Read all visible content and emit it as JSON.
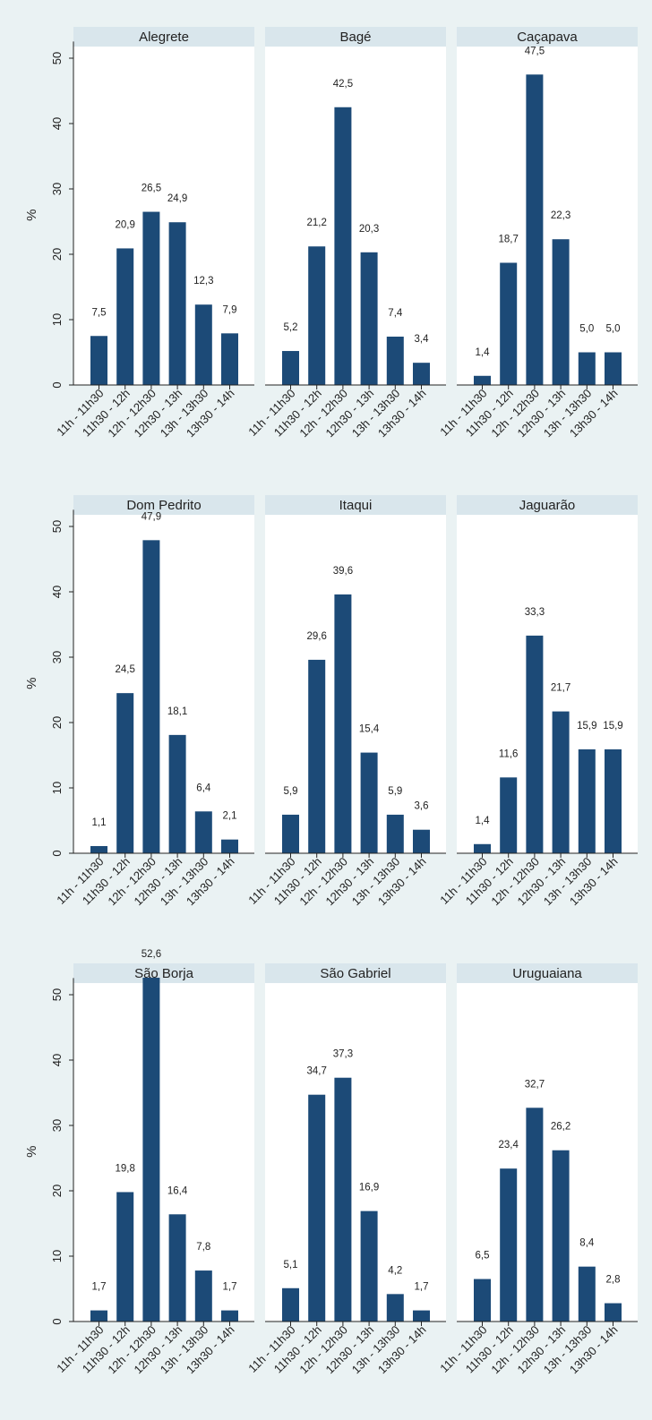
{
  "colors": {
    "background": "#eaf2f3",
    "plot_background": "#ffffff",
    "title_strip": "#d9e6ec",
    "bar": "#1c4a77",
    "axis": "#222222"
  },
  "chart_data": {
    "type": "bar",
    "layout": "small-multiples 3x3",
    "ylabel": "%",
    "ylim": [
      0,
      52
    ],
    "yticks": [
      0,
      10,
      20,
      30,
      40,
      50
    ],
    "grid": false,
    "categories": [
      "11h - 11h30",
      "11h30 - 12h",
      "12h - 12h30",
      "12h30 - 13h",
      "13h - 13h30",
      "13h30 - 14h"
    ],
    "panels": [
      {
        "title": "Alegrete",
        "values": [
          7.5,
          20.9,
          26.5,
          24.9,
          12.3,
          7.9
        ],
        "labels": [
          "7,5",
          "20,9",
          "26,5",
          "24,9",
          "12,3",
          "7,9"
        ]
      },
      {
        "title": "Bagé",
        "values": [
          5.2,
          21.2,
          42.5,
          20.3,
          7.4,
          3.4
        ],
        "labels": [
          "5,2",
          "21,2",
          "42,5",
          "20,3",
          "7,4",
          "3,4"
        ]
      },
      {
        "title": "Caçapava",
        "values": [
          1.4,
          18.7,
          47.5,
          22.3,
          5.0,
          5.0
        ],
        "labels": [
          "1,4",
          "18,7",
          "47,5",
          "22,3",
          "5,0",
          "5,0"
        ]
      },
      {
        "title": "Dom Pedrito",
        "values": [
          1.1,
          24.5,
          47.9,
          18.1,
          6.4,
          2.1
        ],
        "labels": [
          "1,1",
          "24,5",
          "47,9",
          "18,1",
          "6,4",
          "2,1"
        ]
      },
      {
        "title": "Itaqui",
        "values": [
          5.9,
          29.6,
          39.6,
          15.4,
          5.9,
          3.6
        ],
        "labels": [
          "5,9",
          "29,6",
          "39,6",
          "15,4",
          "5,9",
          "3,6"
        ]
      },
      {
        "title": "Jaguarão",
        "values": [
          1.4,
          11.6,
          33.3,
          21.7,
          15.9,
          15.9
        ],
        "labels": [
          "1,4",
          "11,6",
          "33,3",
          "21,7",
          "15,9",
          "15,9"
        ]
      },
      {
        "title": "São Borja",
        "values": [
          1.7,
          19.8,
          52.6,
          16.4,
          7.8,
          1.7
        ],
        "labels": [
          "1,7",
          "19,8",
          "52,6",
          "16,4",
          "7,8",
          "1,7"
        ]
      },
      {
        "title": "São Gabriel",
        "values": [
          5.1,
          34.7,
          37.3,
          16.9,
          4.2,
          1.7
        ],
        "labels": [
          "5,1",
          "34,7",
          "37,3",
          "16,9",
          "4,2",
          "1,7"
        ]
      },
      {
        "title": "Uruguaiana",
        "values": [
          6.5,
          23.4,
          32.7,
          26.2,
          8.4,
          2.8
        ],
        "labels": [
          "6,5",
          "23,4",
          "32,7",
          "26,2",
          "8,4",
          "2,8"
        ]
      }
    ]
  }
}
